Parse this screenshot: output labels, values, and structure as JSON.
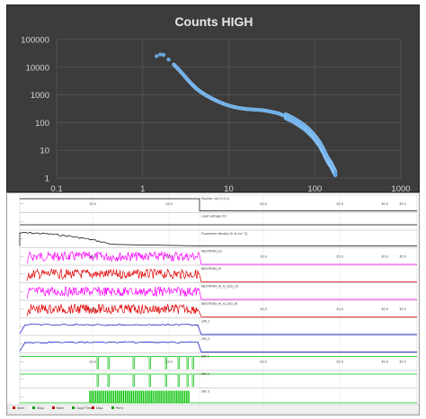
{
  "chart_data": [
    {
      "type": "scatter",
      "title": "Counts HIGH",
      "xlabel": "",
      "ylabel": "",
      "x_scale": "log",
      "y_scale": "log",
      "xlim": [
        0.1,
        1000
      ],
      "ylim": [
        1,
        100000
      ],
      "x_ticks": [
        "0.1",
        "1",
        "10",
        "100",
        "1000"
      ],
      "y_ticks": [
        "100000",
        "10000",
        "1000",
        "100",
        "10",
        "1"
      ],
      "grid": true,
      "legend": "none",
      "marker_color": "#5ba3e0",
      "points": [
        [
          1.45,
          25000
        ],
        [
          1.6,
          29000
        ],
        [
          1.75,
          28000
        ],
        [
          2.0,
          19000
        ],
        [
          2.3,
          12500
        ],
        [
          2.6,
          8500
        ],
        [
          3.0,
          5200
        ],
        [
          3.4,
          3300
        ],
        [
          3.8,
          2300
        ],
        [
          4.2,
          1700
        ],
        [
          4.8,
          1250
        ],
        [
          5.5,
          950
        ],
        [
          6.5,
          720
        ],
        [
          7.5,
          580
        ],
        [
          9.0,
          460
        ],
        [
          11,
          380
        ],
        [
          13,
          340
        ],
        [
          16,
          310
        ],
        [
          20,
          295
        ],
        [
          25,
          280
        ],
        [
          30,
          255
        ],
        [
          38,
          215
        ],
        [
          46,
          170
        ],
        [
          55,
          130
        ],
        [
          65,
          95
        ],
        [
          75,
          70
        ],
        [
          85,
          50
        ],
        [
          95,
          35
        ],
        [
          105,
          24
        ],
        [
          115,
          16
        ],
        [
          125,
          10
        ],
        [
          135,
          6
        ],
        [
          145,
          4
        ],
        [
          155,
          3
        ],
        [
          165,
          2
        ],
        [
          175,
          1.4
        ]
      ]
    },
    {
      "type": "line",
      "title": "",
      "description_free": true,
      "tracks": [
        {
          "name": "Pos/Vac val (0.0 s)",
          "color": "#000000",
          "style": "step-down"
        },
        {
          "name": "Load voltage (V)",
          "color": "#000000",
          "style": "flat"
        },
        {
          "name": "Fluxmeter density (k # cm^3)",
          "color": "#000000",
          "style": "decay"
        },
        {
          "name": "NEUTRON_LO",
          "color": "#ff00ff",
          "style": "noise"
        },
        {
          "name": "NEUTRON_HI",
          "color": "#e00000",
          "style": "noise"
        },
        {
          "name": "NEUTRON_HI_hi_LEG_LO",
          "color": "#ff00ff",
          "style": "noise"
        },
        {
          "name": "NEUTRON_HI_hi_LEG_HI",
          "color": "#e00000",
          "style": "noise"
        },
        {
          "name": "GM_1",
          "color": "#0000c0",
          "style": "plateau"
        },
        {
          "name": "GM_2",
          "color": "#0000c0",
          "style": "plateau"
        },
        {
          "name": "SW 1",
          "color": "#00c000",
          "style": "pulses"
        },
        {
          "name": "SW 2",
          "color": "#00c000",
          "style": "pulses"
        },
        {
          "name": "SW 3",
          "color": "#00c000",
          "style": "block"
        }
      ],
      "x_ticks": [
        "10.0",
        "15.0",
        "20.0",
        "25.0",
        "30.0",
        "35.0"
      ],
      "footer": [
        "Start",
        "Stop",
        "Rate",
        "Copy Time",
        "Disp",
        "Print"
      ]
    }
  ]
}
